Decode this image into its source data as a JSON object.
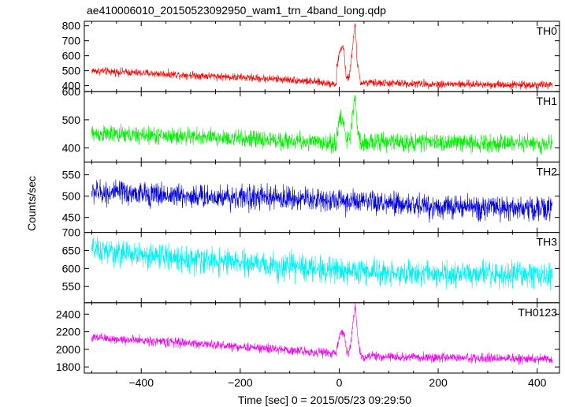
{
  "chart_data": {
    "type": "line",
    "title": "ae410006010_20150523092950_wam1_trn_4band_long.qdp",
    "xlabel": "Time [sec] 0 = 2015/05/23 09:29:50",
    "ylabel": "Counts/sec",
    "xlim": [
      -515,
      445
    ],
    "x_ticks": [
      -400,
      -200,
      0,
      200,
      400
    ],
    "x_range_data": [
      -500,
      430
    ],
    "panels": [
      {
        "name": "TH0",
        "color": "#ff0000",
        "ylim": [
          360,
          830
        ],
        "y_ticks": [
          400,
          500,
          600,
          700,
          800
        ],
        "baseline": {
          "x": [
            -500,
            -300,
            -100,
            0
          ],
          "y": [
            500,
            470,
            440,
            410
          ]
        },
        "baseline_after": {
          "x": [
            40,
            200,
            430
          ],
          "y": [
            420,
            410,
            405
          ]
        },
        "noise_halfwidth": 30,
        "burst": [
          {
            "x": -5,
            "y": 520
          },
          {
            "x": 0,
            "y": 610
          },
          {
            "x": 3,
            "y": 640
          },
          {
            "x": 6,
            "y": 670
          },
          {
            "x": 10,
            "y": 630
          },
          {
            "x": 14,
            "y": 440
          },
          {
            "x": 20,
            "y": 460
          },
          {
            "x": 26,
            "y": 620
          },
          {
            "x": 30,
            "y": 760
          },
          {
            "x": 33,
            "y": 810
          },
          {
            "x": 36,
            "y": 560
          },
          {
            "x": 42,
            "y": 440
          }
        ]
      },
      {
        "name": "TH1",
        "color": "#00ee00",
        "ylim": [
          350,
          600
        ],
        "y_ticks": [
          400,
          500,
          600
        ],
        "baseline": {
          "x": [
            -500,
            -300,
            -100,
            0
          ],
          "y": [
            450,
            440,
            425,
            415
          ]
        },
        "baseline_after": {
          "x": [
            40,
            200,
            430
          ],
          "y": [
            420,
            420,
            415
          ]
        },
        "noise_halfwidth": 35,
        "burst": [
          {
            "x": -5,
            "y": 450
          },
          {
            "x": 0,
            "y": 490
          },
          {
            "x": 5,
            "y": 505
          },
          {
            "x": 10,
            "y": 480
          },
          {
            "x": 15,
            "y": 420
          },
          {
            "x": 22,
            "y": 440
          },
          {
            "x": 28,
            "y": 540
          },
          {
            "x": 32,
            "y": 590
          },
          {
            "x": 36,
            "y": 480
          },
          {
            "x": 42,
            "y": 430
          }
        ]
      },
      {
        "name": "TH2",
        "color": "#0000dd",
        "ylim": [
          415,
          580
        ],
        "y_ticks": [
          450,
          500,
          550
        ],
        "baseline": {
          "x": [
            -500,
            -300,
            -100,
            0
          ],
          "y": [
            510,
            500,
            495,
            490
          ]
        },
        "baseline_after": {
          "x": [
            40,
            200,
            430
          ],
          "y": [
            485,
            475,
            470
          ]
        },
        "noise_halfwidth": 32,
        "burst": []
      },
      {
        "name": "TH3",
        "color": "#00f0f0",
        "ylim": [
          505,
          700
        ],
        "y_ticks": [
          550,
          600,
          650,
          700
        ],
        "baseline": {
          "x": [
            -500,
            -300,
            -100,
            0
          ],
          "y": [
            650,
            625,
            605,
            595
          ]
        },
        "baseline_after": {
          "x": [
            40,
            200,
            430
          ],
          "y": [
            590,
            585,
            580
          ]
        },
        "noise_halfwidth": 40,
        "burst": []
      },
      {
        "name": "TH0123",
        "color": "#ee00ee",
        "ylim": [
          1730,
          2530
        ],
        "y_ticks": [
          1800,
          2000,
          2200,
          2400
        ],
        "baseline": {
          "x": [
            -500,
            -300,
            -100,
            0
          ],
          "y": [
            2130,
            2070,
            1990,
            1950
          ]
        },
        "baseline_after": {
          "x": [
            40,
            200,
            430
          ],
          "y": [
            1920,
            1905,
            1890
          ]
        },
        "noise_halfwidth": 60,
        "burst": [
          {
            "x": -5,
            "y": 1990
          },
          {
            "x": 0,
            "y": 2150
          },
          {
            "x": 5,
            "y": 2220
          },
          {
            "x": 10,
            "y": 2180
          },
          {
            "x": 15,
            "y": 1960
          },
          {
            "x": 22,
            "y": 2000
          },
          {
            "x": 28,
            "y": 2300
          },
          {
            "x": 33,
            "y": 2500
          },
          {
            "x": 37,
            "y": 2150
          },
          {
            "x": 43,
            "y": 1940
          }
        ]
      }
    ]
  }
}
